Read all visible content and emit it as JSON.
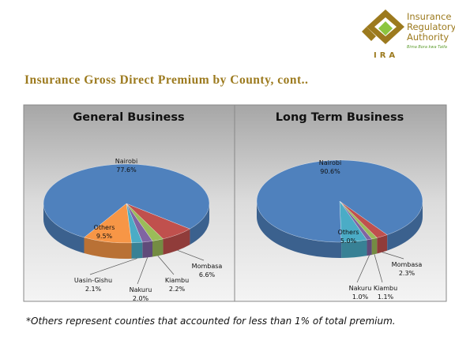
{
  "header": {
    "org_name": [
      "Insurance",
      "Regulatory",
      "Authority"
    ],
    "tagline": "Bima Bora kwa Taifa",
    "acronym": "IRA"
  },
  "title": "Insurance Gross Direct Premium by County, cont..",
  "footnote": "*Others represent counties that accounted for less than 1% of total premium.",
  "chart_data": [
    {
      "type": "pie",
      "title": "General Business",
      "categories": [
        "Mombasa",
        "Kiambu",
        "Nakuru",
        "Uasin-Gishu",
        "Others",
        "Nairobi"
      ],
      "values": [
        6.6,
        2.2,
        2.0,
        2.1,
        9.5,
        77.6
      ],
      "value_labels": [
        "6.6%",
        "2.2%",
        "2.0%",
        "2.1%",
        "9.5%",
        "77.6%"
      ],
      "colors": [
        "#c0504d",
        "#9bbb59",
        "#8064a2",
        "#4bacc6",
        "#f79646",
        "#4f81bd"
      ]
    },
    {
      "type": "pie",
      "title": "Long Term Business",
      "categories": [
        "Mombasa",
        "Kiambu",
        "Nakuru",
        "Others",
        "Nairobi"
      ],
      "values": [
        2.3,
        1.1,
        1.0,
        5.0,
        90.6
      ],
      "value_labels": [
        "2.3%",
        "1.1%",
        "1.0%",
        "5.0%",
        "90.6%"
      ],
      "colors": [
        "#c0504d",
        "#9bbb59",
        "#8064a2",
        "#4bacc6",
        "#4f81bd"
      ]
    }
  ]
}
